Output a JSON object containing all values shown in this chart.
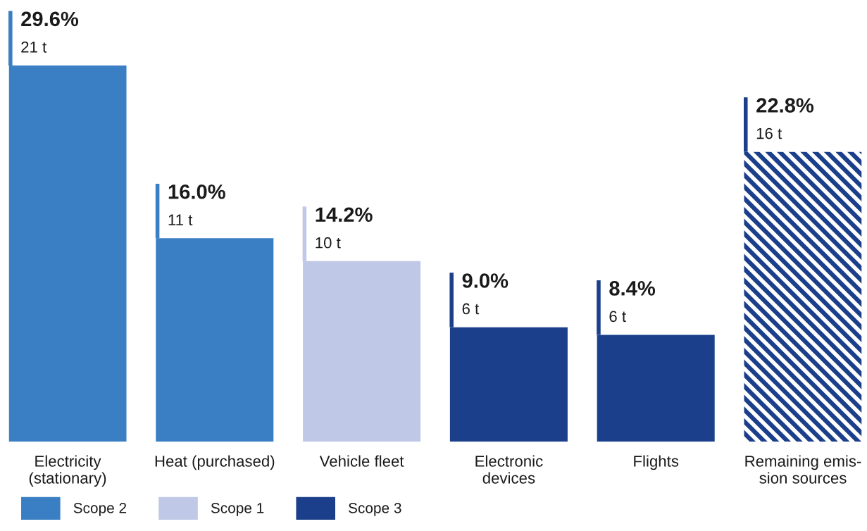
{
  "chart_data": {
    "type": "bar",
    "categories": [
      "Electricity\n(stationary)",
      "Heat (purchased)",
      "Vehicle fleet",
      "Electronic\ndevices",
      "Flights",
      "Remaining emis-\nsion sources"
    ],
    "series": [
      {
        "name": "Scope 2",
        "color": "#3a7fc4",
        "values": [
          29.6,
          16.0,
          null,
          null,
          null,
          null
        ],
        "value_labels": [
          "29.6%\n21 t",
          "16.0%\n11 t",
          null,
          null,
          null,
          null
        ]
      },
      {
        "name": "Scope 1",
        "color": "#bfc8e6",
        "values": [
          null,
          null,
          14.2,
          null,
          null,
          null
        ],
        "value_labels": [
          null,
          null,
          "14.2%\n10 t",
          null,
          null,
          null
        ]
      },
      {
        "name": "Scope 3",
        "color": "#1b3f8a",
        "values": [
          null,
          null,
          null,
          9.0,
          8.4,
          null
        ],
        "value_labels": [
          null,
          null,
          null,
          "9.0%\n6 t",
          "8.4%\n6 t",
          null
        ]
      },
      {
        "color": "#1b3f8a",
        "values": [
          null,
          null,
          null,
          null,
          null,
          22.8
        ],
        "value_labels": [
          null,
          null,
          null,
          null,
          null,
          "22.8%\n16 t"
        ]
      }
    ],
    "tick_labels": "x",
    "grid": false,
    "legend": "bottom left"
  }
}
